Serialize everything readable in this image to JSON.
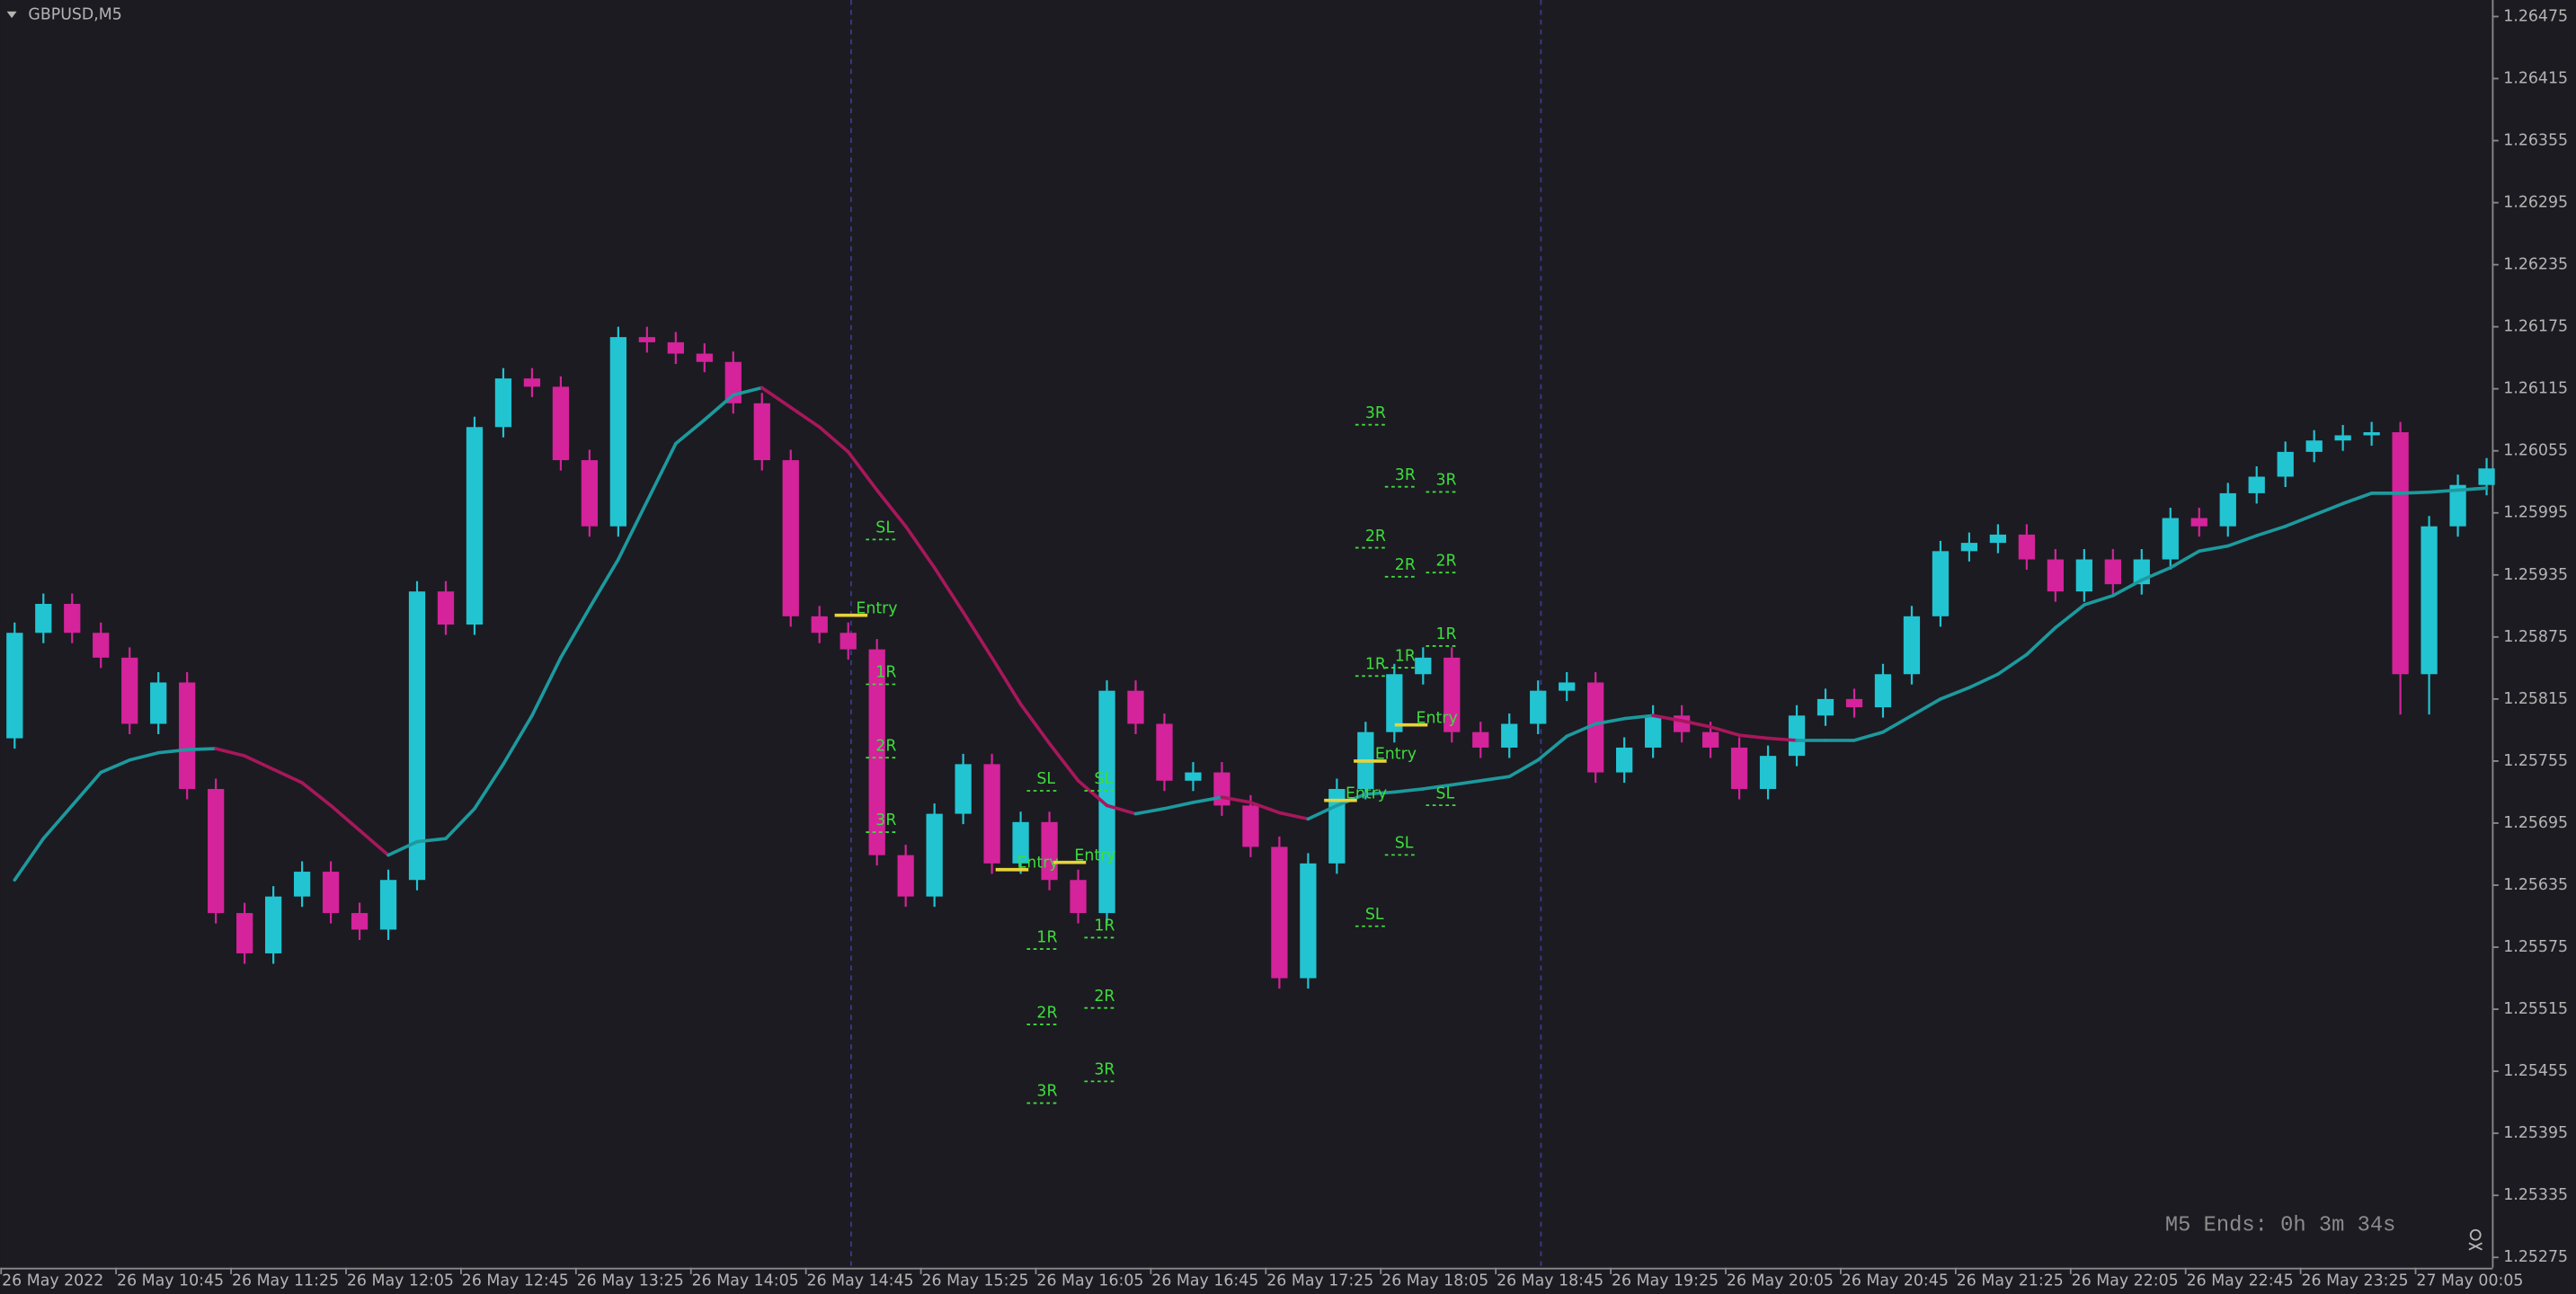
{
  "chart_data": {
    "type": "candlestick",
    "symbol": "GBPUSD,M5",
    "countdown": "M5 Ends: 0h 3m 34s",
    "ylim": [
      1.25265,
      1.26491
    ],
    "yticks": [
      1.25275,
      1.25335,
      1.25395,
      1.25455,
      1.25515,
      1.25575,
      1.25635,
      1.25695,
      1.25755,
      1.25815,
      1.25875,
      1.25935,
      1.25995,
      1.26055,
      1.26115,
      1.26175,
      1.26235,
      1.26295,
      1.26355,
      1.26415,
      1.26475
    ],
    "time_labels": [
      "26 May 2022",
      "26 May 10:45",
      "26 May 11:25",
      "26 May 12:05",
      "26 May 12:45",
      "26 May 13:25",
      "26 May 14:05",
      "26 May 14:45",
      "26 May 15:25",
      "26 May 16:05",
      "26 May 16:45",
      "26 May 17:25",
      "26 May 18:05",
      "26 May 18:45",
      "26 May 19:25",
      "26 May 20:05",
      "26 May 20:45",
      "26 May 21:25",
      "26 May 22:05",
      "26 May 22:45",
      "26 May 23:25",
      "27 May 00:05"
    ],
    "bull_color": "#22c4d2",
    "bear_color": "#d4239b",
    "candles": {
      "open": [
        1.25777,
        1.25879,
        1.25907,
        1.25879,
        1.25855,
        1.25791,
        1.25831,
        1.25728,
        1.25608,
        1.25569,
        1.25624,
        1.25648,
        1.25608,
        1.25592,
        1.2564,
        1.25919,
        1.25887,
        1.26078,
        1.26125,
        1.26117,
        1.26046,
        1.25982,
        1.26165,
        1.2616,
        1.26149,
        1.26141,
        1.26101,
        1.26046,
        1.25895,
        1.25879,
        1.25863,
        1.25664,
        1.25624,
        1.25704,
        1.25752,
        1.25656,
        1.25696,
        1.2564,
        1.25608,
        1.25823,
        1.25791,
        1.25736,
        1.25744,
        1.25712,
        1.25672,
        1.25545,
        1.25656,
        1.25728,
        1.25783,
        1.25839,
        1.25855,
        1.25783,
        1.25768,
        1.25791,
        1.25823,
        1.25831,
        1.25744,
        1.25768,
        1.25799,
        1.25783,
        1.25768,
        1.25728,
        1.2576,
        1.25799,
        1.25815,
        1.25807,
        1.25839,
        1.25895,
        1.25958,
        1.25966,
        1.25974,
        1.2595,
        1.25919,
        1.2595,
        1.25926,
        1.2595,
        1.2599,
        1.25982,
        1.26014,
        1.2603,
        1.26054,
        1.26065,
        1.2607,
        1.26073,
        1.25839,
        1.25982,
        1.26022
      ],
      "high": [
        1.25889,
        1.25917,
        1.25917,
        1.25889,
        1.25865,
        1.25841,
        1.25841,
        1.25738,
        1.25618,
        1.25634,
        1.25658,
        1.25658,
        1.25618,
        1.2565,
        1.25929,
        1.25929,
        1.26088,
        1.26135,
        1.26135,
        1.26127,
        1.26056,
        1.26175,
        1.26175,
        1.2617,
        1.26159,
        1.26151,
        1.26111,
        1.26056,
        1.25905,
        1.25889,
        1.25873,
        1.25674,
        1.25714,
        1.25762,
        1.25762,
        1.25706,
        1.25706,
        1.2565,
        1.25833,
        1.25833,
        1.25801,
        1.25754,
        1.25754,
        1.25722,
        1.25682,
        1.25666,
        1.25738,
        1.25793,
        1.25849,
        1.25865,
        1.25865,
        1.25793,
        1.25801,
        1.25833,
        1.25841,
        1.25841,
        1.25778,
        1.25809,
        1.25809,
        1.25793,
        1.25778,
        1.2577,
        1.25809,
        1.25825,
        1.25825,
        1.25849,
        1.25905,
        1.25968,
        1.25976,
        1.25984,
        1.25984,
        1.2596,
        1.2596,
        1.2596,
        1.2596,
        1.26,
        1.26,
        1.26024,
        1.2604,
        1.26064,
        1.26075,
        1.2608,
        1.26083,
        1.26083,
        1.25992,
        1.26032,
        1.26048
      ],
      "low": [
        1.25767,
        1.25869,
        1.25869,
        1.25845,
        1.25781,
        1.25781,
        1.25718,
        1.25598,
        1.25559,
        1.25559,
        1.25614,
        1.25598,
        1.25582,
        1.25582,
        1.2563,
        1.25877,
        1.25877,
        1.26068,
        1.26107,
        1.26036,
        1.25972,
        1.25972,
        1.2615,
        1.26139,
        1.26131,
        1.26091,
        1.26036,
        1.25885,
        1.25869,
        1.25853,
        1.25654,
        1.25614,
        1.25614,
        1.25694,
        1.25646,
        1.25646,
        1.2563,
        1.25598,
        1.25598,
        1.25781,
        1.25726,
        1.25726,
        1.25702,
        1.25662,
        1.25535,
        1.25535,
        1.25646,
        1.25718,
        1.25773,
        1.25829,
        1.25773,
        1.25758,
        1.25758,
        1.25781,
        1.25813,
        1.25734,
        1.25734,
        1.25758,
        1.25773,
        1.25758,
        1.25718,
        1.25718,
        1.2575,
        1.25789,
        1.25797,
        1.25797,
        1.25829,
        1.25885,
        1.25948,
        1.25956,
        1.2594,
        1.25909,
        1.25909,
        1.25916,
        1.25916,
        1.2594,
        1.25972,
        1.25972,
        1.26004,
        1.2602,
        1.26044,
        1.26055,
        1.2606,
        1.258,
        1.258,
        1.25972,
        1.26012
      ],
      "close": [
        1.25879,
        1.25907,
        1.25879,
        1.25855,
        1.25791,
        1.25831,
        1.25728,
        1.25608,
        1.25569,
        1.25624,
        1.25648,
        1.25608,
        1.25592,
        1.2564,
        1.25919,
        1.25887,
        1.26078,
        1.26125,
        1.26117,
        1.26046,
        1.25982,
        1.26165,
        1.2616,
        1.26149,
        1.26141,
        1.26101,
        1.26046,
        1.25895,
        1.25879,
        1.25863,
        1.25664,
        1.25624,
        1.25704,
        1.25752,
        1.25656,
        1.25696,
        1.2564,
        1.25608,
        1.25823,
        1.25791,
        1.25736,
        1.25744,
        1.25712,
        1.25672,
        1.25545,
        1.25656,
        1.25728,
        1.25783,
        1.25839,
        1.25855,
        1.25783,
        1.25768,
        1.25791,
        1.25823,
        1.25831,
        1.25744,
        1.25768,
        1.25799,
        1.25783,
        1.25768,
        1.25728,
        1.2576,
        1.25799,
        1.25815,
        1.25807,
        1.25839,
        1.25895,
        1.25958,
        1.25966,
        1.25974,
        1.2595,
        1.25919,
        1.2595,
        1.25926,
        1.2595,
        1.2599,
        1.25982,
        1.26014,
        1.2603,
        1.26054,
        1.26065,
        1.2607,
        1.26073,
        1.25839,
        1.25982,
        1.26022,
        1.26038
      ]
    },
    "ma": {
      "up_color": "#1c9a9e",
      "down_color": "#a8175c",
      "values": [
        1.2564,
        1.2568,
        1.25712,
        1.25744,
        1.25756,
        1.25763,
        1.25766,
        1.25767,
        1.2576,
        1.25747,
        1.25734,
        1.25712,
        1.25688,
        1.25664,
        1.25677,
        1.2568,
        1.25709,
        1.25752,
        1.25799,
        1.25855,
        1.25903,
        1.2595,
        1.26006,
        1.26062,
        1.26085,
        1.26109,
        1.26116,
        1.26097,
        1.26078,
        1.26054,
        1.26017,
        1.25982,
        1.25942,
        1.25899,
        1.25855,
        1.2581,
        1.25772,
        1.25736,
        1.25712,
        1.25704,
        1.25709,
        1.25715,
        1.2572,
        1.25715,
        1.25705,
        1.25699,
        1.25712,
        1.25723,
        1.25725,
        1.25728,
        1.25732,
        1.25736,
        1.2574,
        1.25756,
        1.25779,
        1.25791,
        1.25796,
        1.25799,
        1.25794,
        1.25788,
        1.2578,
        1.25777,
        1.25775,
        1.25775,
        1.25775,
        1.25783,
        1.25799,
        1.25815,
        1.25826,
        1.25839,
        1.25858,
        1.25884,
        1.25906,
        1.25915,
        1.2593,
        1.25942,
        1.25958,
        1.25963,
        1.25973,
        1.25982,
        1.25993,
        1.26004,
        1.26014,
        1.26014,
        1.26015,
        1.26017,
        1.26019
      ]
    },
    "setups": [
      {
        "levels": [
          {
            "label": "SL",
            "price": 1.25974
          },
          {
            "label": "Entry",
            "price": 1.25896
          },
          {
            "label": "1R",
            "price": 1.25834
          },
          {
            "label": "2R",
            "price": 1.25763
          },
          {
            "label": "3R",
            "price": 1.25691
          }
        ]
      },
      {
        "levels": [
          {
            "label": "SL",
            "price": 1.25731
          },
          {
            "label": "Entry",
            "price": 1.2565
          },
          {
            "label": "1R",
            "price": 1.25578
          },
          {
            "label": "2R",
            "price": 1.25505
          },
          {
            "label": "3R",
            "price": 1.25429
          }
        ]
      },
      {
        "levels": [
          {
            "label": "SL",
            "price": 1.25731
          },
          {
            "label": "Entry",
            "price": 1.25657
          },
          {
            "label": "1R",
            "price": 1.25589
          },
          {
            "label": "2R",
            "price": 1.25521
          },
          {
            "label": "3R",
            "price": 1.2545
          }
        ]
      },
      {
        "levels": [
          {
            "label": "3R",
            "price": 1.26085
          },
          {
            "label": "2R",
            "price": 1.25966
          },
          {
            "label": "1R",
            "price": 1.25842
          },
          {
            "label": "Entry",
            "price": 1.25717
          },
          {
            "label": "SL",
            "price": 1.256
          }
        ]
      },
      {
        "levels": [
          {
            "label": "3R",
            "price": 1.26025
          },
          {
            "label": "2R",
            "price": 1.25938
          },
          {
            "label": "1R",
            "price": 1.2585
          },
          {
            "label": "Entry",
            "price": 1.25755
          },
          {
            "label": "SL",
            "price": 1.25669
          }
        ]
      },
      {
        "levels": [
          {
            "label": "3R",
            "price": 1.2602
          },
          {
            "label": "2R",
            "price": 1.25942
          },
          {
            "label": "1R",
            "price": 1.25871
          },
          {
            "label": "Entry",
            "price": 1.2579
          },
          {
            "label": "SL",
            "price": 1.25717
          }
        ]
      }
    ]
  }
}
